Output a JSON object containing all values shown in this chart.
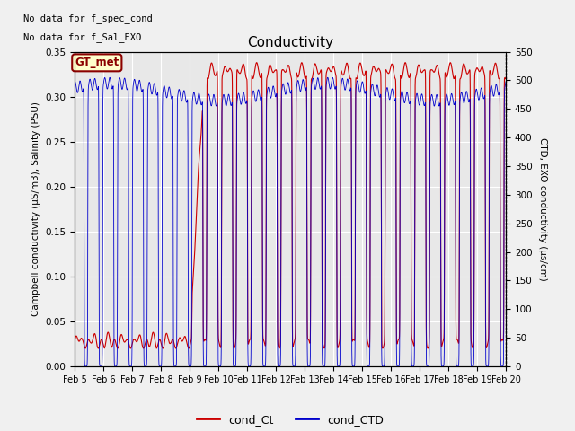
{
  "title": "Conductivity",
  "ylabel_left": "Campbell conductivity (µS/m3), Salinity (PSU)",
  "ylabel_right": "CTD, EXO conductivity (µs/cm)",
  "ylim_left": [
    0,
    0.35
  ],
  "ylim_right": [
    0,
    550
  ],
  "yticks_left": [
    0.0,
    0.05,
    0.1,
    0.15,
    0.2,
    0.25,
    0.3,
    0.35
  ],
  "yticks_right": [
    0,
    50,
    100,
    150,
    200,
    250,
    300,
    350,
    400,
    450,
    500,
    550
  ],
  "xtick_labels": [
    "Feb 5",
    "Feb 6",
    "Feb 7",
    "Feb 8",
    "Feb 9",
    "Feb 10",
    "Feb 11",
    "Feb 12",
    "Feb 13",
    "Feb 14",
    "Feb 15",
    "Feb 16",
    "Feb 17",
    "Feb 18",
    "Feb 19",
    "Feb 20"
  ],
  "text_no_data_1": "No data for f_spec_cond",
  "text_no_data_2": "No data for f_Sal_EXO",
  "legend_box_label": "GT_met",
  "legend_box_color": "#ffffcc",
  "legend_box_edge": "#8b0000",
  "color_red": "#cc0000",
  "color_blue": "#0000cc",
  "background_color": "#f0f0f0",
  "plot_bg_color": "#e8e8e8",
  "grid_color": "#ffffff",
  "figsize": [
    6.4,
    4.8
  ],
  "dpi": 100
}
